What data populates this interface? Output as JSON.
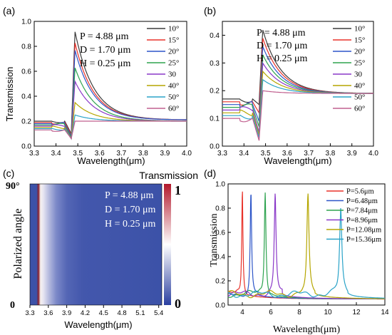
{
  "chart_data": [
    {
      "panel": "(a)",
      "type": "line",
      "xlabel": "Wavelength(μm)",
      "ylabel": "Transmission",
      "xlim": [
        3.3,
        4.0
      ],
      "ylim": [
        0,
        1.0
      ],
      "x_ticks": [
        "3.3",
        "3.4",
        "3.5",
        "3.6",
        "3.7",
        "3.8",
        "3.9",
        "4.0"
      ],
      "y_ticks": [
        "0.0",
        "0.2",
        "0.4",
        "0.6",
        "0.8",
        "1.0"
      ],
      "annotations": [
        "P = 4.88 μm",
        "D = 1.70 μm",
        "H = 0.25 μm"
      ],
      "legend_position": "top-right",
      "series": [
        {
          "name": "10°",
          "color": "#3c3c3c",
          "baseline": 0.2,
          "dip": 0.1,
          "peak": 0.92,
          "end": 0.21
        },
        {
          "name": "15°",
          "color": "#e8322a",
          "baseline": 0.19,
          "dip": 0.09,
          "peak": 0.83,
          "end": 0.21
        },
        {
          "name": "20°",
          "color": "#2d55c8",
          "baseline": 0.18,
          "dip": 0.08,
          "peak": 0.77,
          "end": 0.21
        },
        {
          "name": "25°",
          "color": "#2ea34f",
          "baseline": 0.17,
          "dip": 0.07,
          "peak": 0.63,
          "end": 0.2
        },
        {
          "name": "30",
          "color": "#8a38c8",
          "baseline": 0.16,
          "dip": 0.06,
          "peak": 0.52,
          "end": 0.2
        },
        {
          "name": "40°",
          "color": "#b5a600",
          "baseline": 0.15,
          "dip": 0.06,
          "peak": 0.35,
          "end": 0.2
        },
        {
          "name": "50°",
          "color": "#2aa3c8",
          "baseline": 0.14,
          "dip": 0.06,
          "peak": 0.25,
          "end": 0.2
        },
        {
          "name": "60°",
          "color": "#c0608f",
          "baseline": 0.13,
          "dip": 0.06,
          "peak": 0.2,
          "end": 0.2
        }
      ]
    },
    {
      "panel": "(b)",
      "type": "line",
      "xlabel": "Wavelength(μm)",
      "ylabel": "Transmission",
      "xlim": [
        3.3,
        4.0
      ],
      "ylim": [
        0,
        0.45
      ],
      "x_ticks": [
        "3.3",
        "3.4",
        "3.5",
        "3.6",
        "3.7",
        "3.8",
        "3.9",
        "4.0"
      ],
      "y_ticks": [
        "0.0",
        "0.1",
        "0.2",
        "0.3",
        "0.4"
      ],
      "annotations": [
        "P = 4.88 μm",
        "D = 1.70 μm",
        "H = 0.25 μm"
      ],
      "legend_position": "top-right",
      "series": [
        {
          "name": "10°",
          "color": "#3c3c3c",
          "baseline": 0.17,
          "dip": 0.15,
          "peak": 0.42,
          "end": 0.19
        },
        {
          "name": "15°",
          "color": "#e8322a",
          "baseline": 0.16,
          "dip": 0.12,
          "peak": 0.39,
          "end": 0.19
        },
        {
          "name": "20°",
          "color": "#2d55c8",
          "baseline": 0.15,
          "dip": 0.09,
          "peak": 0.36,
          "end": 0.19
        },
        {
          "name": "25°",
          "color": "#2ea34f",
          "baseline": 0.14,
          "dip": 0.07,
          "peak": 0.33,
          "end": 0.19
        },
        {
          "name": "30",
          "color": "#8a38c8",
          "baseline": 0.13,
          "dip": 0.05,
          "peak": 0.3,
          "end": 0.19
        },
        {
          "name": "40°",
          "color": "#b5a600",
          "baseline": 0.12,
          "dip": 0.04,
          "peak": 0.27,
          "end": 0.19
        },
        {
          "name": "50°",
          "color": "#2aa3c8",
          "baseline": 0.11,
          "dip": 0.03,
          "peak": 0.24,
          "end": 0.19
        },
        {
          "name": "60°",
          "color": "#c0608f",
          "baseline": 0.1,
          "dip": 0.02,
          "peak": 0.2,
          "end": 0.19
        }
      ]
    },
    {
      "panel": "(c)",
      "type": "heatmap",
      "title": "Transmission",
      "xlabel": "Wavelength(μm)",
      "ylabel": "Polarized angle",
      "x_ticks": [
        "3.3",
        "3.6",
        "3.9",
        "4.2",
        "4.5",
        "4.8",
        "5.1",
        "5.4"
      ],
      "y_ticks": [
        "0",
        "90°"
      ],
      "colorbar_ticks": [
        "0",
        "1"
      ],
      "annotations": [
        "P = 4.88 μm",
        "D = 1.70 μm",
        "H = 0.25 μm"
      ],
      "resonance_wavelength": 3.49,
      "colorbar_colors": [
        "#2a3fa0",
        "#ffffff",
        "#b2182b"
      ]
    },
    {
      "panel": "(d)",
      "type": "line",
      "xlabel": "Wavelength(μm)",
      "ylabel": "Transmission",
      "xlim": [
        3,
        14
      ],
      "ylim": [
        0,
        1.0
      ],
      "x_ticks": [
        "4",
        "6",
        "8",
        "10",
        "12",
        "14"
      ],
      "y_ticks": [
        "0.0",
        "0.2",
        "0.4",
        "0.6",
        "0.8",
        "1.0"
      ],
      "legend_position": "top-right",
      "series": [
        {
          "name": "P=5.6μm",
          "color": "#e8322a",
          "resonance": 4.0,
          "peak": 0.96
        },
        {
          "name": "P=6.48μm",
          "color": "#2d55c8",
          "resonance": 4.6,
          "peak": 0.95
        },
        {
          "name": "P=7.84μm",
          "color": "#2ea34f",
          "resonance": 5.6,
          "peak": 0.93
        },
        {
          "name": "P=8.96μm",
          "color": "#8a38c8",
          "resonance": 6.3,
          "peak": 0.92
        },
        {
          "name": "P=12.08μm",
          "color": "#b5a600",
          "resonance": 8.6,
          "peak": 0.93
        },
        {
          "name": "P=15.36μm",
          "color": "#2aa3c8",
          "resonance": 10.9,
          "peak": 0.8
        }
      ]
    }
  ]
}
